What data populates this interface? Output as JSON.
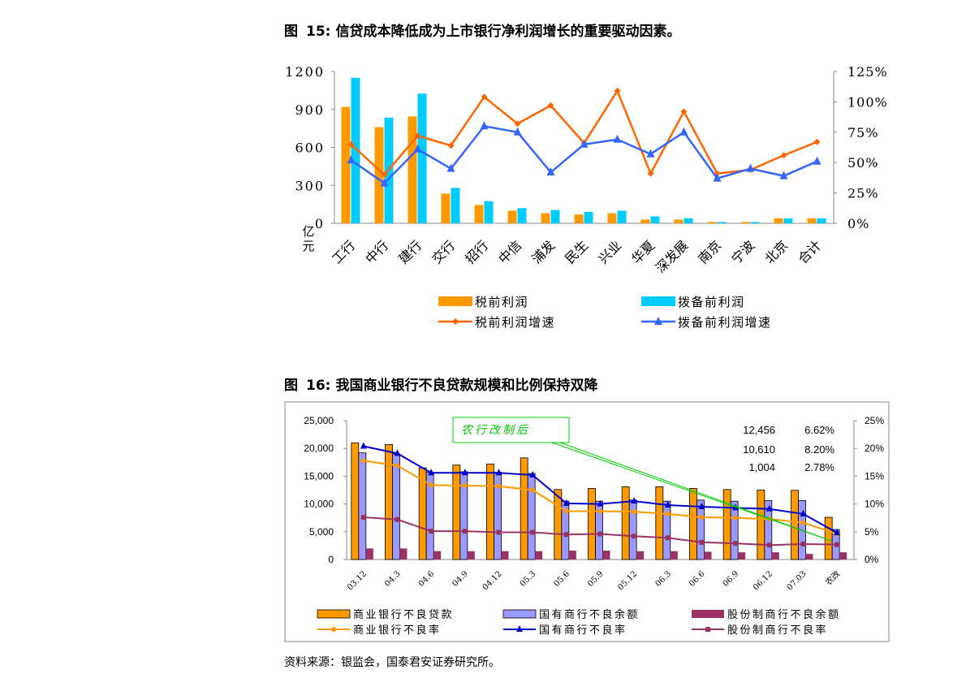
{
  "fig15": {
    "label": "图",
    "num": "15:",
    "title": "信贷成本降低成为上市银行净利润增长的重要驱动因素。"
  },
  "fig16": {
    "label": "图",
    "num": "16:",
    "title": "我国商业银行不良贷款规模和比例保持双降"
  },
  "source": "资料来源：银监会，国泰君安证券研究所。",
  "colors": {
    "orange": "#FF9900",
    "cyan": "#00CCFF",
    "orange_line": "#FF6600",
    "blue_line": "#3366FF",
    "npl_bar": "#FF9900",
    "state_bar": "#9999FF",
    "jsb_bar": "#993366",
    "npl_line": "#FF9900",
    "state_line": "#0000CC",
    "jsb_line": "#993366",
    "callout": "#00CC00"
  },
  "chart_data": [
    {
      "type": "bar",
      "id": "fig15",
      "title": "信贷成本降低成为上市银行净利润增长的重要驱动因素。",
      "ylabel": "亿元",
      "ylim": [
        0,
        1200
      ],
      "yticks": [
        "1200",
        "900",
        "600",
        "300",
        "0"
      ],
      "y2lim": [
        0,
        125
      ],
      "y2ticks": [
        "125%",
        "100%",
        "75%",
        "50%",
        "25%",
        "0%"
      ],
      "categories": [
        "工行",
        "中行",
        "建行",
        "交行",
        "招行",
        "中信",
        "浦发",
        "民生",
        "兴业",
        "华夏",
        "深发展",
        "南京",
        "宁波",
        "北京",
        "合计"
      ],
      "series": [
        {
          "name": "税前利润",
          "kind": "bar",
          "values": [
            920,
            760,
            845,
            235,
            145,
            100,
            80,
            70,
            80,
            30,
            30,
            10,
            10,
            40,
            40
          ]
        },
        {
          "name": "拨备前利润",
          "kind": "bar",
          "values": [
            1150,
            835,
            1025,
            280,
            175,
            120,
            105,
            90,
            100,
            55,
            40,
            10,
            10,
            40,
            40
          ]
        },
        {
          "name": "税前利润增速",
          "kind": "line",
          "axis": "right",
          "values": [
            65,
            40,
            72,
            64,
            104,
            82,
            97,
            66,
            109,
            41,
            92,
            41,
            44,
            56,
            67
          ]
        },
        {
          "name": "拨备前利润增速",
          "kind": "line",
          "axis": "right",
          "values": [
            52,
            33,
            61,
            45,
            80,
            75,
            42,
            65,
            69,
            57,
            75,
            37,
            45,
            39,
            51
          ]
        }
      ]
    },
    {
      "type": "bar",
      "id": "fig16",
      "title": "我国商业银行不良贷款规模和比例保持双降",
      "ylim": [
        0,
        25000
      ],
      "yticks": [
        "25,000",
        "20,000",
        "15,000",
        "10,000",
        "5,000",
        "0"
      ],
      "y2lim": [
        0,
        25
      ],
      "y2ticks": [
        "25%",
        "20%",
        "15%",
        "10%",
        "5%",
        "0%"
      ],
      "categories": [
        "03.12",
        "04.3",
        "04.6",
        "04.9",
        "04.12",
        "05.3",
        "05.6",
        "05.9",
        "05.12",
        "06.3",
        "06.6",
        "06.9",
        "06.12",
        "07.03",
        "农改"
      ],
      "series": [
        {
          "name": "商业银行不良贷款",
          "kind": "bar",
          "values": [
            21000,
            20700,
            16500,
            17000,
            17200,
            18300,
            12600,
            12800,
            13100,
            13100,
            12800,
            12600,
            12500,
            12456,
            7600
          ]
        },
        {
          "name": "国有商行不良余额",
          "kind": "bar",
          "values": [
            19200,
            19000,
            15700,
            15800,
            15700,
            15500,
            10500,
            10500,
            10700,
            10500,
            10700,
            10500,
            10600,
            10610,
            5400
          ]
        },
        {
          "name": "股份制商行不良余额",
          "kind": "bar",
          "values": [
            2000,
            2000,
            1500,
            1500,
            1500,
            1500,
            1600,
            1600,
            1500,
            1500,
            1400,
            1300,
            1300,
            1004,
            1300
          ]
        },
        {
          "name": "商业银行不良率",
          "kind": "line",
          "axis": "right",
          "values": [
            17.8,
            16.9,
            13.4,
            13.3,
            13.2,
            12.5,
            8.7,
            8.7,
            8.6,
            8.2,
            7.6,
            7.5,
            7.3,
            6.62,
            4.6
          ]
        },
        {
          "name": "国有商行不良率",
          "kind": "line",
          "axis": "right",
          "values": [
            20.4,
            19.1,
            15.6,
            15.6,
            15.6,
            15.2,
            10.1,
            10.0,
            10.5,
            9.8,
            9.5,
            9.3,
            9.1,
            8.2,
            4.8
          ]
        },
        {
          "name": "股份制商行不良率",
          "kind": "line",
          "axis": "right",
          "values": [
            7.6,
            7.2,
            5.1,
            5.1,
            4.9,
            4.9,
            4.5,
            4.6,
            4.2,
            3.9,
            3.1,
            2.9,
            2.6,
            2.78,
            2.7
          ]
        }
      ],
      "annotations": {
        "callout": "农行改制后",
        "values": [
          {
            "a": "12,456",
            "b": "6.62%"
          },
          {
            "a": "10,610",
            "b": "8.20%"
          },
          {
            "a": "1,004",
            "b": "2.78%"
          }
        ]
      }
    }
  ]
}
